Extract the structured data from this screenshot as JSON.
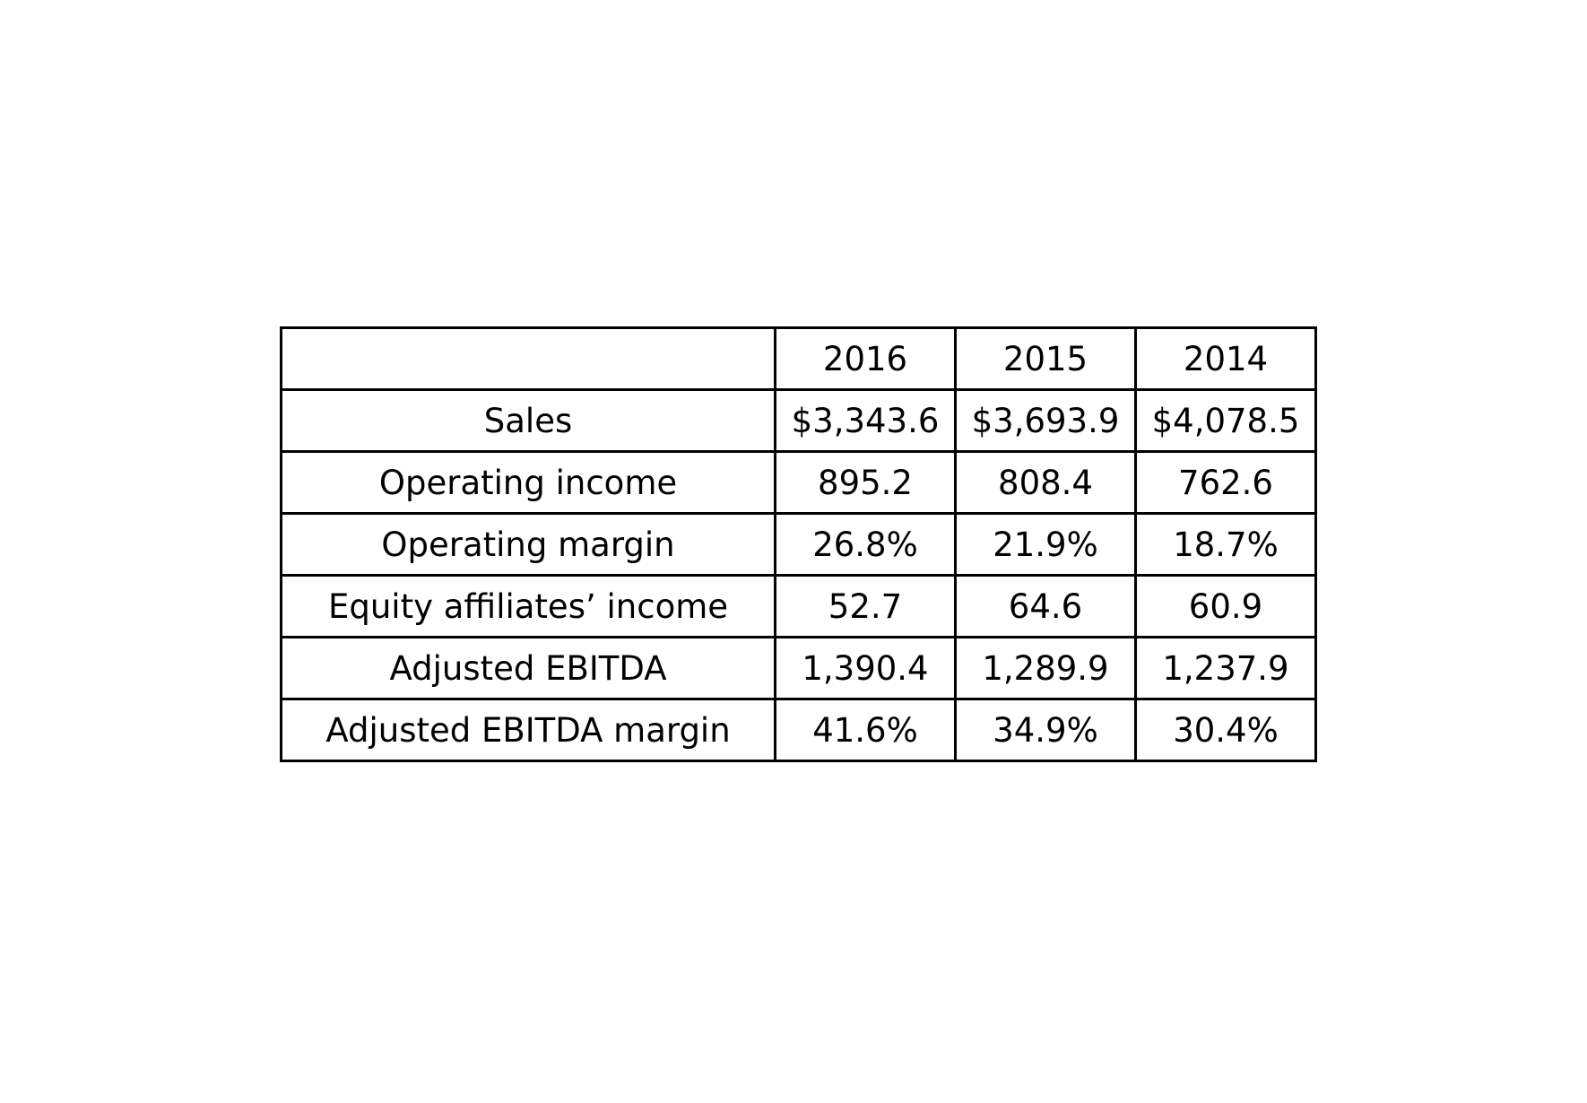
{
  "chart_data": {
    "type": "table",
    "columns": [
      "",
      "2016",
      "2015",
      "2014"
    ],
    "rows": [
      {
        "label": "Sales",
        "values": [
          "$3,343.6",
          "$3,693.9",
          "$4,078.5"
        ]
      },
      {
        "label": "Operating income",
        "values": [
          "895.2",
          "808.4",
          "762.6"
        ]
      },
      {
        "label": "Operating margin",
        "values": [
          "26.8%",
          "21.9%",
          "18.7%"
        ]
      },
      {
        "label": "Equity affiliates’ income",
        "values": [
          "52.7",
          "64.6",
          "60.9"
        ]
      },
      {
        "label": "Adjusted EBITDA",
        "values": [
          "1,390.4",
          "1,289.9",
          "1,237.9"
        ]
      },
      {
        "label": "Adjusted EBITDA margin",
        "values": [
          "41.6%",
          "34.9%",
          "30.4%"
        ]
      }
    ]
  }
}
